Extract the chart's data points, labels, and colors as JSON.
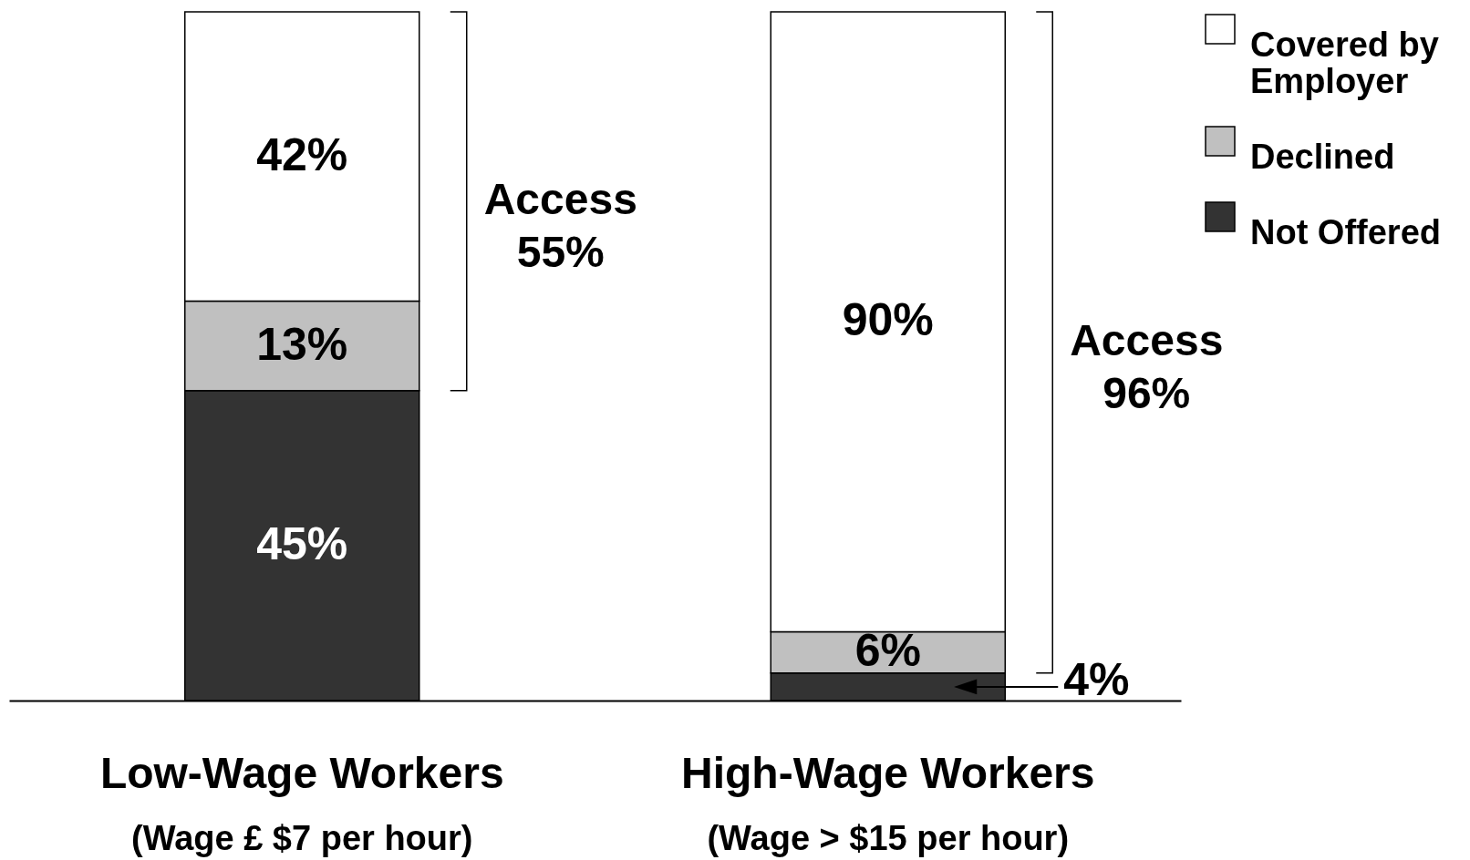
{
  "chart_data": {
    "type": "bar",
    "stacked": true,
    "categories": [
      "Low-Wage Workers\n(Wage £ $7 per hour)",
      "High-Wage Workers\n(Wage > $15 per hour)"
    ],
    "series": [
      {
        "name": "Not Offered",
        "color": "#333333",
        "values": [
          45,
          4
        ],
        "value_labels": [
          "45%",
          "4%"
        ]
      },
      {
        "name": "Declined",
        "color": "#c0c0c0",
        "values": [
          13,
          6
        ],
        "value_labels": [
          "13%",
          "6%"
        ]
      },
      {
        "name": "Covered by Employer",
        "color": "#ffffff",
        "values": [
          42,
          90
        ],
        "value_labels": [
          "42%",
          "90%"
        ]
      }
    ],
    "ylim": [
      0,
      100
    ],
    "tick_labels": "x",
    "legend": "top right",
    "annotations": [
      "Access 55%",
      "Access 96%"
    ]
  }
}
